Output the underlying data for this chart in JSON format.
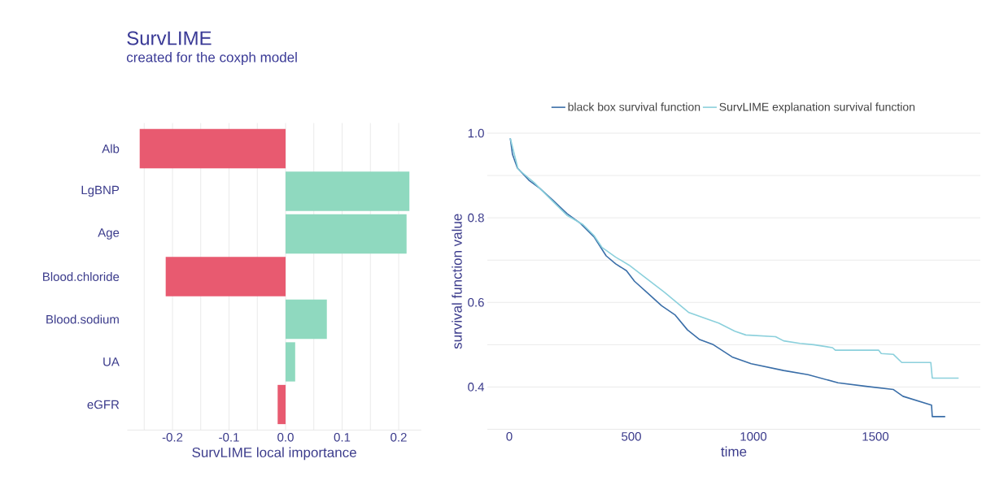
{
  "chart_data": [
    {
      "type": "bar",
      "orientation": "horizontal",
      "title": "SurvLIME",
      "subtitle": "created for the coxph model",
      "xlabel": "SurvLIME local importance",
      "categories": [
        "Alb",
        "LgBNP",
        "Age",
        "Blood.chloride",
        "Blood.sodium",
        "UA",
        "eGFR"
      ],
      "values": [
        -0.258,
        0.219,
        0.214,
        -0.212,
        0.073,
        0.017,
        -0.014
      ],
      "colors": [
        "#e85a70",
        "#8fd9bf",
        "#8fd9bf",
        "#e85a70",
        "#8fd9bf",
        "#8fd9bf",
        "#e85a70"
      ],
      "xlim": [
        -0.28,
        0.24
      ],
      "xticks": [
        {
          "value": -0.25,
          "label": null
        },
        -0.2,
        {
          "value": -0.15,
          "label": null
        },
        -0.1,
        {
          "value": -0.05,
          "label": null
        },
        {
          "value": 0,
          "label": "0.0"
        },
        {
          "value": 0.05,
          "label": null
        },
        0.1,
        {
          "value": 0.15,
          "label": null
        },
        0.2
      ],
      "grid": "x",
      "legend": false
    },
    {
      "type": "line",
      "xlabel": "time",
      "ylabel": "survival function value",
      "legend": "top",
      "grid": "y",
      "xlim": [
        -90,
        1930
      ],
      "ylim": [
        0.3,
        1.0
      ],
      "xticks": [
        0,
        500,
        1000,
        1500
      ],
      "yticks": [
        {
          "value": 0.3,
          "label": null
        },
        0.4,
        {
          "value": 0.5,
          "label": null
        },
        0.6,
        {
          "value": 0.7,
          "label": null
        },
        0.8,
        {
          "value": 0.9,
          "label": null
        },
        {
          "value": 1.0,
          "label": "1.0"
        }
      ],
      "series": [
        {
          "name": "black box survival function",
          "color": "#3a6ea8",
          "x": [
            4,
            13,
            33,
            80,
            124,
            180,
            236,
            291,
            347,
            397,
            436,
            480,
            513,
            569,
            624,
            680,
            730,
            780,
            836,
            913,
            991,
            1124,
            1224,
            1347,
            1469,
            1574,
            1613,
            1730,
            1733,
            1786
          ],
          "values": [
            0.988,
            0.95,
            0.918,
            0.889,
            0.87,
            0.841,
            0.81,
            0.787,
            0.755,
            0.71,
            0.691,
            0.675,
            0.65,
            0.621,
            0.592,
            0.57,
            0.535,
            0.512,
            0.5,
            0.471,
            0.455,
            0.439,
            0.429,
            0.41,
            0.401,
            0.394,
            0.378,
            0.357,
            0.33,
            0.33
          ]
        },
        {
          "name": "SurvLIME explanation survival function",
          "color": "#8bd0dc",
          "x": [
            4,
            36,
            102,
            180,
            236,
            302,
            347,
            380,
            436,
            491,
            547,
            636,
            736,
            813,
            858,
            924,
            969,
            1091,
            1124,
            1191,
            1247,
            1324,
            1336,
            1513,
            1524,
            1574,
            1608,
            1727,
            1733,
            1841
          ],
          "values": [
            0.988,
            0.915,
            0.883,
            0.838,
            0.806,
            0.784,
            0.758,
            0.73,
            0.707,
            0.688,
            0.663,
            0.624,
            0.576,
            0.56,
            0.551,
            0.532,
            0.523,
            0.519,
            0.509,
            0.503,
            0.5,
            0.493,
            0.487,
            0.487,
            0.479,
            0.477,
            0.458,
            0.458,
            0.421,
            0.421
          ]
        }
      ]
    }
  ]
}
